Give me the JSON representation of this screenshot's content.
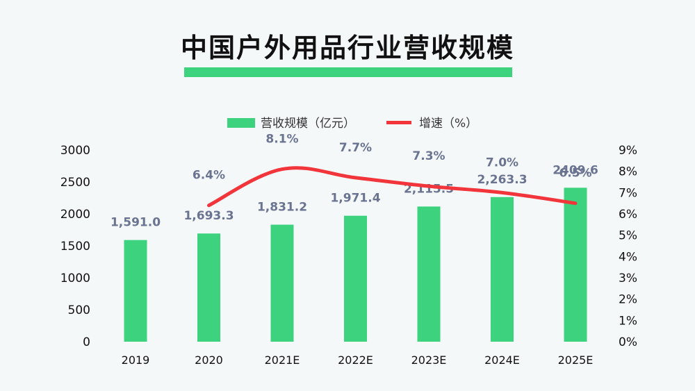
{
  "chart_data": {
    "type": "bar",
    "title": "中国户外用品行业营收规模",
    "categories": [
      "2019",
      "2020",
      "2021E",
      "2022E",
      "2023E",
      "2024E",
      "2025E"
    ],
    "series": [
      {
        "name": "营收规模（亿元）",
        "type": "bar",
        "axis": "left",
        "values": [
          1591.0,
          1693.3,
          1831.2,
          1971.4,
          2115.5,
          2263.3,
          2409.6
        ],
        "labels": [
          "1,591.0",
          "1,693.3",
          "1,831.2",
          "1,971.4",
          "2,115.5",
          "2,263.3",
          "2409.6"
        ],
        "color": "#3dd37e"
      },
      {
        "name": "增速（%）",
        "type": "line",
        "axis": "right",
        "values": [
          null,
          6.4,
          8.1,
          7.7,
          7.3,
          7.0,
          6.5
        ],
        "labels": [
          "",
          "6.4%",
          "8.1%",
          "7.7%",
          "7.3%",
          "7.0%",
          "6.5%"
        ],
        "color": "#f2343b"
      }
    ],
    "y_left": {
      "ylim": [
        0,
        3000
      ],
      "ticks": [
        "0",
        "500",
        "1000",
        "1500",
        "2000",
        "2500",
        "3000"
      ]
    },
    "y_right": {
      "ylim": [
        0,
        9
      ],
      "ticks": [
        "0%",
        "1%",
        "2%",
        "3%",
        "4%",
        "5%",
        "6%",
        "7%",
        "8%",
        "9%"
      ]
    },
    "legend_position": "top-center",
    "grid": false
  }
}
